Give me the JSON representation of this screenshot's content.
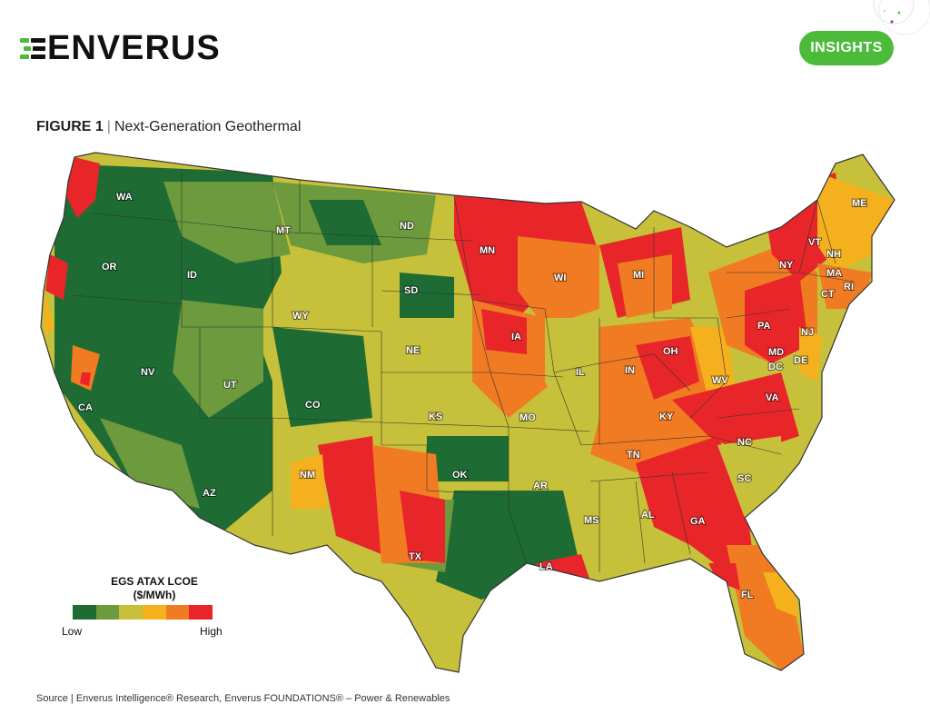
{
  "header": {
    "logo_text": "ENVERUS",
    "insights_label": "INSIGHTS"
  },
  "figure": {
    "label": "FIGURE 1",
    "separator": "|",
    "title": "Next-Generation Geothermal"
  },
  "legend": {
    "title_line1": "EGS ATAX LCOE",
    "title_line2": "($/MWh)",
    "low": "Low",
    "high": "High",
    "colors": [
      "#1e6b34",
      "#6d9a3c",
      "#c7c03a",
      "#f5b01e",
      "#f07b22",
      "#e8262a"
    ]
  },
  "source": "Source | Enverus Intelligence® Research, Enverus FOUNDATIONS® – Power & Renewables",
  "map": {
    "states": [
      {
        "abbr": "WA",
        "cls": 1
      },
      {
        "abbr": "OR",
        "cls": 0
      },
      {
        "abbr": "CA",
        "cls": 0
      },
      {
        "abbr": "ID",
        "cls": 0
      },
      {
        "abbr": "NV",
        "cls": 0
      },
      {
        "abbr": "MT",
        "cls": 1
      },
      {
        "abbr": "WY",
        "cls": 1
      },
      {
        "abbr": "UT",
        "cls": 1
      },
      {
        "abbr": "AZ",
        "cls": 0
      },
      {
        "abbr": "CO",
        "cls": 0
      },
      {
        "abbr": "NM",
        "cls": 2
      },
      {
        "abbr": "ND",
        "cls": 1
      },
      {
        "abbr": "SD",
        "cls": 2
      },
      {
        "abbr": "NE",
        "cls": 2
      },
      {
        "abbr": "KS",
        "cls": 1
      },
      {
        "abbr": "OK",
        "cls": 1
      },
      {
        "abbr": "TX",
        "cls": 2
      },
      {
        "abbr": "MN",
        "cls": 5
      },
      {
        "abbr": "IA",
        "cls": 4
      },
      {
        "abbr": "MO",
        "cls": 4
      },
      {
        "abbr": "AR",
        "cls": 1
      },
      {
        "abbr": "LA",
        "cls": 1
      },
      {
        "abbr": "WI",
        "cls": 4
      },
      {
        "abbr": "IL",
        "cls": 2
      },
      {
        "abbr": "MI",
        "cls": 5
      },
      {
        "abbr": "IN",
        "cls": 3
      },
      {
        "abbr": "OH",
        "cls": 4
      },
      {
        "abbr": "KY",
        "cls": 4
      },
      {
        "abbr": "TN",
        "cls": 4
      },
      {
        "abbr": "MS",
        "cls": 2
      },
      {
        "abbr": "AL",
        "cls": 5
      },
      {
        "abbr": "GA",
        "cls": 5
      },
      {
        "abbr": "FL",
        "cls": 4
      },
      {
        "abbr": "SC",
        "cls": 2
      },
      {
        "abbr": "NC",
        "cls": 5
      },
      {
        "abbr": "VA",
        "cls": 5
      },
      {
        "abbr": "WV",
        "cls": 3
      },
      {
        "abbr": "PA",
        "cls": 5
      },
      {
        "abbr": "NY",
        "cls": 5
      },
      {
        "abbr": "VT",
        "cls": 5
      },
      {
        "abbr": "NH",
        "cls": 3
      },
      {
        "abbr": "ME",
        "cls": 3
      },
      {
        "abbr": "MA",
        "cls": 4
      },
      {
        "abbr": "CT",
        "cls": 4
      },
      {
        "abbr": "RI",
        "cls": 4
      },
      {
        "abbr": "NJ",
        "cls": 5
      },
      {
        "abbr": "DE",
        "cls": 3
      },
      {
        "abbr": "MD",
        "cls": 5
      },
      {
        "abbr": "DC",
        "cls": 5
      }
    ]
  }
}
